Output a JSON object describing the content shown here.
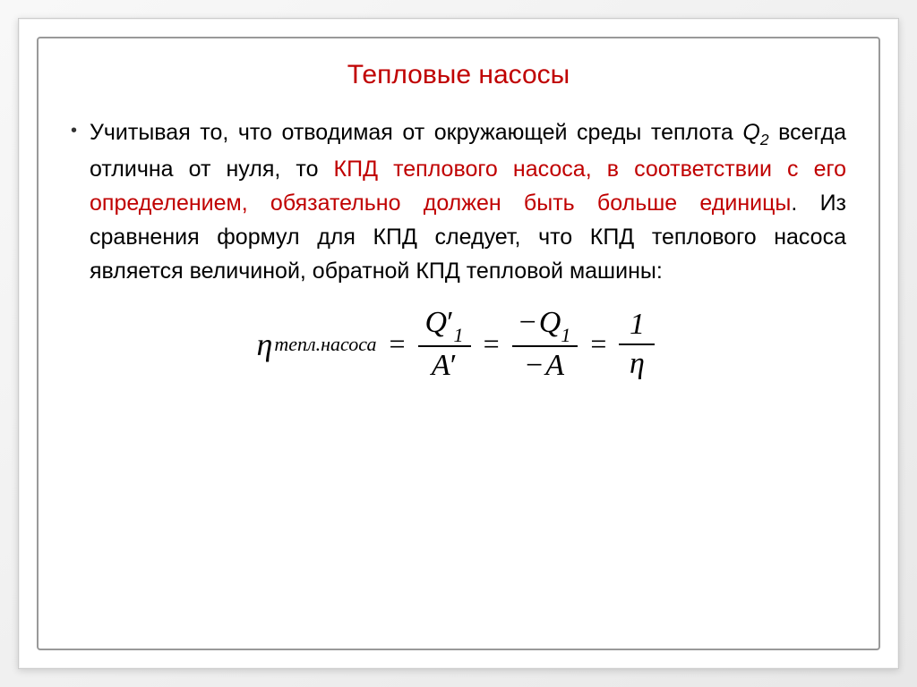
{
  "title": "Тепловые насосы",
  "bullet": "•",
  "body": {
    "part1": "Учитывая то, что отводимая от окружающей среды теплота ",
    "q2_symbol": "Q",
    "q2_sub": "2",
    "part2": " всегда отлична от нуля, то ",
    "red_span": "КПД теплового насоса, в соответствии с его определением, обязательно должен быть больше единицы",
    "part3": ". Из сравнения формул для КПД следует, что КПД теплового насоса является величиной, обратной КПД тепловой машины:"
  },
  "formula": {
    "eta": "η",
    "subscript": "тепл.насоса",
    "eq": "=",
    "frac1_num_Q": "Q",
    "frac1_num_prime": "′",
    "frac1_num_sub": "1",
    "frac1_den_A": "A",
    "frac1_den_prime": "′",
    "frac2_num_minus": "−",
    "frac2_num_Q": "Q",
    "frac2_num_sub": "1",
    "frac2_den_minus": "−",
    "frac2_den_A": "A",
    "frac3_num": "1",
    "frac3_den": "η"
  },
  "colors": {
    "title_color": "#c00000",
    "red_text_color": "#c00000",
    "body_color": "#000000",
    "border_color": "#999999",
    "background": "#ffffff"
  },
  "typography": {
    "title_fontsize": 30,
    "body_fontsize": 25,
    "formula_fontsize": 34,
    "body_font": "Arial",
    "formula_font": "Times New Roman"
  }
}
